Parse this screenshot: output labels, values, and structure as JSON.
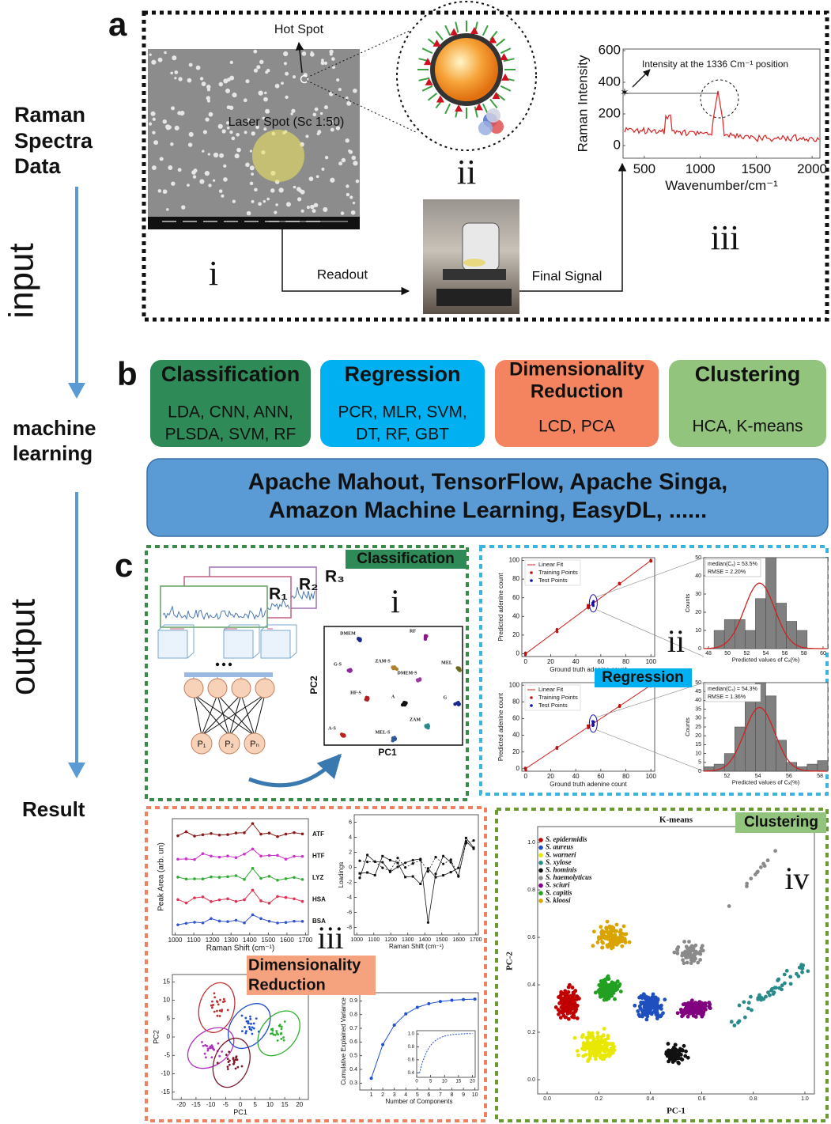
{
  "flow": {
    "raman": [
      "Raman",
      "Spectra",
      "Data"
    ],
    "input": "input",
    "ml": [
      "machine",
      "learning"
    ],
    "output": "output",
    "result": "Result"
  },
  "panel_a": {
    "label": "a",
    "hot_spot": "Hot Spot",
    "laser_spot": "Laser Spot (Sc 1:50)",
    "readout": "Readout",
    "final_signal": "Final Signal",
    "numerals": [
      "i",
      "ii",
      "iii"
    ],
    "spectrum": {
      "ylabel": "Raman Intensity",
      "xlabel": "Wavenumber/cm⁻¹",
      "annotation": "Intensity at the 1336 Cm⁻¹ position",
      "xlim": [
        310,
        2070
      ],
      "ylim": [
        -80,
        610
      ],
      "xticks": [
        500,
        1000,
        1500,
        2000
      ],
      "yticks": [
        0,
        200,
        400,
        600
      ]
    }
  },
  "panel_b": {
    "label": "b",
    "boxes": [
      {
        "title": [
          "Classification"
        ],
        "methods": [
          "LDA, CNN, ANN,",
          "PLSDA, SVM, RF"
        ],
        "color": "#2e8b57"
      },
      {
        "title": [
          "Regression"
        ],
        "methods": [
          "PCR, MLR, SVM,",
          "DT, RF, GBT"
        ],
        "color": "#00b0f0"
      },
      {
        "title": [
          "Dimensionality",
          "Reduction"
        ],
        "methods": [
          "LCD, PCA"
        ],
        "color": "#f4845f"
      },
      {
        "title": [
          "Clustering"
        ],
        "methods": [
          "HCA, K-means"
        ],
        "color": "#93c47d"
      }
    ],
    "platforms": [
      "Apache Mahout, TensorFlow, Apache Singa,",
      "Amazon Machine Learning, EasyDL, ......"
    ]
  },
  "panel_c": {
    "label": "c",
    "classification": {
      "tag": "Classification",
      "numeral": "i",
      "r_labels": [
        "R₁",
        "R₂",
        "R₃"
      ],
      "p_labels": [
        "P₁",
        "P₂",
        "Pₙ"
      ],
      "pc1": "PC1",
      "pc2": "PC2",
      "classes": [
        "DMEM",
        "RF",
        "G-S",
        "ZAM-S",
        "MEL",
        "DMEM-S",
        "HF-S",
        "A",
        "G",
        "A-S",
        "MEL-S",
        "ZAM"
      ]
    },
    "regression": {
      "tag": "Regression",
      "numeral": "ii",
      "plots": [
        {
          "legend": [
            "Linear Fit",
            "Training Points",
            "Test Points"
          ],
          "xlabel": "Ground truth adenine count",
          "ylabel": "Predicted adenine count",
          "xlim": [
            -3,
            103
          ],
          "ylim": [
            -3,
            103
          ],
          "xticks": [
            0,
            20,
            40,
            60,
            80,
            100
          ],
          "yticks": [
            0,
            20,
            40,
            60,
            80,
            100
          ]
        },
        {
          "annotation": [
            "median(Cₓ) = 53.5%",
            "RMSE = 2.20%"
          ],
          "xlabel": "Predicted values of Cₓ(%)",
          "ylabel": "Counts",
          "xlim": [
            47.5,
            60.5
          ],
          "ylim": [
            0,
            50
          ],
          "xticks": [
            48,
            50,
            52,
            54,
            56,
            58,
            60
          ],
          "yticks": [
            0,
            10,
            20,
            30,
            40,
            50
          ]
        },
        {
          "legend": [
            "Linear Fit",
            "Training Points",
            "Test Points"
          ],
          "xlabel": "Ground truth adenine count",
          "ylabel": "Predicted adenine count",
          "xlim": [
            -3,
            103
          ],
          "ylim": [
            -3,
            103
          ],
          "xticks": [
            0,
            20,
            40,
            60,
            80,
            100
          ],
          "yticks": [
            0,
            20,
            40,
            60,
            80,
            100
          ]
        },
        {
          "annotation": [
            "median(Cₓ) = 54.3%",
            "RMSE = 1.36%"
          ],
          "xlabel": "Predicted values of Cₓ(%)",
          "ylabel": "Counts",
          "xlim": [
            50.5,
            58.5
          ],
          "ylim": [
            0,
            50
          ],
          "xticks": [
            52,
            54,
            56,
            58
          ],
          "yticks": [
            0,
            5,
            10,
            15,
            20,
            25,
            30,
            35,
            40,
            45,
            50
          ]
        }
      ]
    },
    "dimensionality": {
      "tag": [
        "Dimensionality",
        "Reduction"
      ],
      "numeral": "iii",
      "plots": [
        {
          "ylabel": "Peak Area (arb. un)",
          "xlabel": "Raman Shift (cm⁻¹)",
          "xlim": [
            985,
            1715
          ],
          "xticks": [
            1000,
            1100,
            1200,
            1300,
            1400,
            1500,
            1600,
            1700
          ],
          "series_labels": [
            "ATF",
            "HTF",
            "LYZ",
            "HSA",
            "BSA"
          ],
          "colors": [
            "#8b1a1a",
            "#cc33cc",
            "#33aa33",
            "#dd3355",
            "#3355cc"
          ]
        },
        {
          "ylabel": "Loadings",
          "xlabel": "Raman Shift (cm⁻¹)",
          "xlim": [
            985,
            1715
          ],
          "ylim": [
            -9,
            7
          ],
          "xticks": [
            1000,
            1100,
            1200,
            1300,
            1400,
            1500,
            1600,
            1700
          ],
          "yticks": [
            -8,
            -6,
            -4,
            -2,
            0,
            2,
            4,
            6
          ]
        },
        {
          "xlabel": "PC1",
          "ylabel": "PC2",
          "xlim": [
            -23,
            23
          ],
          "ylim": [
            -17,
            17
          ],
          "xticks": [
            -20,
            -15,
            -10,
            -5,
            0,
            5,
            10,
            15,
            20
          ],
          "yticks": [
            -15,
            -10,
            -5,
            0,
            5,
            10,
            15
          ]
        },
        {
          "xlabel": "Number of Components",
          "ylabel": "Cumulative Explained Variance",
          "xlim": [
            0,
            10.3
          ],
          "ylim": [
            0.25,
            0.96
          ],
          "xticks": [
            1,
            2,
            3,
            4,
            5,
            6,
            7,
            8,
            9,
            10
          ],
          "yticks": [
            0.3,
            0.4,
            0.5,
            0.6,
            0.7,
            0.8,
            0.9
          ],
          "inset": {
            "xlim": [
              0,
              21
            ],
            "ylim": [
              0.33,
              1.05
            ],
            "xticks": [
              0,
              5,
              10,
              15,
              20
            ],
            "yticks": [
              0.4,
              0.6,
              0.8,
              {
                "value": 1,
                "label": "1.0"
              }
            ]
          }
        }
      ]
    },
    "clustering": {
      "tag": "Clustering",
      "numeral": "iv",
      "title": "K-means",
      "legend": [
        "S. epidermidis",
        "S. aureus",
        "S. warneri",
        "S. xylose",
        "S. hominis",
        "S. haemolyticus",
        "S. sciuri",
        "S. capitis",
        "S. kloosi"
      ],
      "colors": [
        "#c00000",
        "#1f4fbf",
        "#e8e800",
        "#2a8a8a",
        "#111111",
        "#8a8a8a",
        "#800080",
        "#22a022",
        "#d9a400"
      ],
      "xlabel": "PC-1",
      "ylabel": "PC-2",
      "xlim": [
        -0.037,
        1.037
      ],
      "ylim": [
        -0.06,
        1.067
      ],
      "xticks": [
        {
          "value": 0,
          "label": "0.0"
        },
        0.2,
        0.4,
        0.6,
        0.8,
        {
          "value": 1,
          "label": "1.0"
        }
      ],
      "yticks": [
        {
          "value": 0,
          "label": "0.0"
        },
        0.2,
        0.4,
        0.6,
        0.8,
        {
          "value": 1,
          "label": "1.0"
        }
      ]
    }
  }
}
